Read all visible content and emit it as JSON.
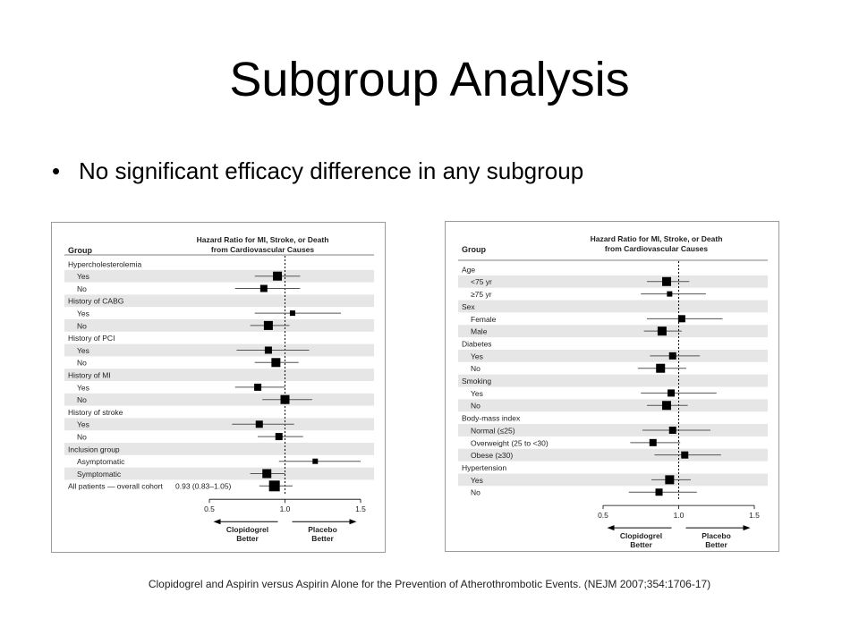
{
  "slide": {
    "title": "Subgroup Analysis",
    "bullet": "No significant efficacy difference in any subgroup",
    "citation": "Clopidogrel and Aspirin versus Aspirin Alone for the Prevention of Atherothrombotic Events.  (NEJM 2007;354:1706-17)"
  },
  "colors": {
    "band": "#e6e6e6",
    "marker": "#000000",
    "ci_line": "#555555",
    "text": "#222222"
  },
  "chart_data": [
    {
      "type": "forest",
      "header": {
        "group_label": "Group",
        "title_line1": "Hazard Ratio for MI, Stroke, or Death",
        "title_line2": "from Cardiovascular Causes"
      },
      "xlim": [
        0.5,
        1.5
      ],
      "xticks": [
        "0.5",
        "1.0",
        "1.5"
      ],
      "reference_line": 1.0,
      "direction_labels": {
        "left": [
          "Clopidogrel",
          "Better"
        ],
        "right": [
          "Placebo",
          "Better"
        ]
      },
      "rows": [
        {
          "label": "Hypercholesterolemia",
          "kind": "heading"
        },
        {
          "label": "Yes",
          "kind": "item",
          "hr": 0.95,
          "lo": 0.8,
          "hi": 1.1,
          "size": 3
        },
        {
          "label": "No",
          "kind": "item",
          "hr": 0.86,
          "lo": 0.67,
          "hi": 1.1,
          "size": 2
        },
        {
          "label": "History of CABG",
          "kind": "heading"
        },
        {
          "label": "Yes",
          "kind": "item",
          "hr": 1.05,
          "lo": 0.8,
          "hi": 1.37,
          "size": 1
        },
        {
          "label": "No",
          "kind": "item",
          "hr": 0.89,
          "lo": 0.77,
          "hi": 1.03,
          "size": 3
        },
        {
          "label": "History of PCI",
          "kind": "heading"
        },
        {
          "label": "Yes",
          "kind": "item",
          "hr": 0.89,
          "lo": 0.68,
          "hi": 1.16,
          "size": 2
        },
        {
          "label": "No",
          "kind": "item",
          "hr": 0.94,
          "lo": 0.8,
          "hi": 1.09,
          "size": 3
        },
        {
          "label": "History of MI",
          "kind": "heading"
        },
        {
          "label": "Yes",
          "kind": "item",
          "hr": 0.82,
          "lo": 0.67,
          "hi": 1.0,
          "size": 2
        },
        {
          "label": "No",
          "kind": "item",
          "hr": 1.0,
          "lo": 0.85,
          "hi": 1.18,
          "size": 3
        },
        {
          "label": "History of stroke",
          "kind": "heading"
        },
        {
          "label": "Yes",
          "kind": "item",
          "hr": 0.83,
          "lo": 0.65,
          "hi": 1.06,
          "size": 2
        },
        {
          "label": "No",
          "kind": "item",
          "hr": 0.96,
          "lo": 0.82,
          "hi": 1.12,
          "size": 2
        },
        {
          "label": "Inclusion group",
          "kind": "heading"
        },
        {
          "label": "Asymptomatic",
          "kind": "item",
          "hr": 1.2,
          "lo": 0.96,
          "hi": 1.5,
          "size": 1
        },
        {
          "label": "Symptomatic",
          "kind": "item",
          "hr": 0.88,
          "lo": 0.77,
          "hi": 1.0,
          "size": 3
        },
        {
          "label": "All patients — overall cohort",
          "kind": "overall",
          "value_text": "0.93 (0.83–1.05)",
          "hr": 0.93,
          "lo": 0.83,
          "hi": 1.05,
          "size": 4
        }
      ]
    },
    {
      "type": "forest",
      "header": {
        "group_label": "Group",
        "title_line1": "Hazard Ratio for MI, Stroke, or Death",
        "title_line2": "from Cardiovascular Causes"
      },
      "xlim": [
        0.5,
        1.5
      ],
      "xticks": [
        "0.5",
        "1.0",
        "1.5"
      ],
      "reference_line": 1.0,
      "direction_labels": {
        "left": [
          "Clopidogrel",
          "Better"
        ],
        "right": [
          "Placebo",
          "Better"
        ]
      },
      "rows": [
        {
          "label": "Age",
          "kind": "heading"
        },
        {
          "label": "<75 yr",
          "kind": "item",
          "hr": 0.92,
          "lo": 0.79,
          "hi": 1.07,
          "size": 3
        },
        {
          "label": "≥75 yr",
          "kind": "item",
          "hr": 0.94,
          "lo": 0.75,
          "hi": 1.18,
          "size": 1
        },
        {
          "label": "Sex",
          "kind": "heading"
        },
        {
          "label": "Female",
          "kind": "item",
          "hr": 1.02,
          "lo": 0.79,
          "hi": 1.29,
          "size": 2
        },
        {
          "label": "Male",
          "kind": "item",
          "hr": 0.89,
          "lo": 0.77,
          "hi": 1.02,
          "size": 3
        },
        {
          "label": "Diabetes",
          "kind": "heading"
        },
        {
          "label": "Yes",
          "kind": "item",
          "hr": 0.96,
          "lo": 0.81,
          "hi": 1.14,
          "size": 2
        },
        {
          "label": "No",
          "kind": "item",
          "hr": 0.88,
          "lo": 0.73,
          "hi": 1.05,
          "size": 3
        },
        {
          "label": "Smoking",
          "kind": "heading"
        },
        {
          "label": "Yes",
          "kind": "item",
          "hr": 0.95,
          "lo": 0.75,
          "hi": 1.25,
          "size": 2
        },
        {
          "label": "No",
          "kind": "item",
          "hr": 0.92,
          "lo": 0.79,
          "hi": 1.06,
          "size": 3
        },
        {
          "label": "Body-mass index",
          "kind": "heading"
        },
        {
          "label": "Normal (≤25)",
          "kind": "item",
          "hr": 0.96,
          "lo": 0.76,
          "hi": 1.21,
          "size": 2
        },
        {
          "label": "Overweight (25 to <30)",
          "kind": "item",
          "hr": 0.83,
          "lo": 0.68,
          "hi": 1.01,
          "size": 2
        },
        {
          "label": "Obese (≥30)",
          "kind": "item",
          "hr": 1.04,
          "lo": 0.84,
          "hi": 1.28,
          "size": 2
        },
        {
          "label": "Hypertension",
          "kind": "heading"
        },
        {
          "label": "Yes",
          "kind": "item",
          "hr": 0.94,
          "lo": 0.82,
          "hi": 1.08,
          "size": 3
        },
        {
          "label": "No",
          "kind": "item",
          "hr": 0.87,
          "lo": 0.67,
          "hi": 1.12,
          "size": 2
        }
      ]
    }
  ]
}
